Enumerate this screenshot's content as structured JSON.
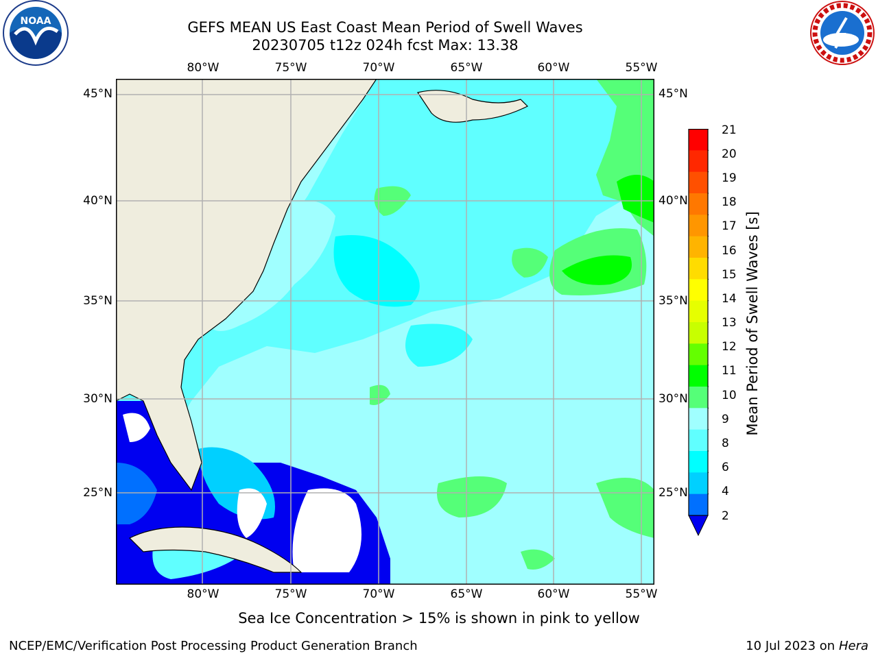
{
  "title": {
    "line1": "GEFS MEAN US East Coast Mean Period of Swell Waves",
    "line2": "20230705 t12z 024h fcst   Max: 13.38"
  },
  "logos": {
    "left": "noaa-logo",
    "right": "national-weather-service-logo"
  },
  "map": {
    "lon_labels": [
      "80°W",
      "75°W",
      "70°W",
      "65°W",
      "60°W",
      "55°W"
    ],
    "lat_labels": [
      "45°N",
      "40°N",
      "35°N",
      "30°N",
      "25°N"
    ],
    "land_color": "#efedde",
    "grid_color": "#b0b0b0"
  },
  "colorbar": {
    "label": "Mean Period of Swell Waves [s]",
    "ticks": [
      "21",
      "20",
      "19",
      "18",
      "17",
      "16",
      "15",
      "14",
      "13",
      "12",
      "11",
      "10",
      "9",
      "8",
      "6",
      "4",
      "2"
    ],
    "colors": [
      "#ff0000",
      "#ff2800",
      "#ff5000",
      "#ff7800",
      "#ff9600",
      "#ffb400",
      "#ffdc00",
      "#ffff00",
      "#e6ff00",
      "#c8ff00",
      "#64ff00",
      "#00ff00",
      "#55ff78",
      "#a0ffff",
      "#60ffff",
      "#00ffff",
      "#00d0ff",
      "#0070ff",
      "#0000f0"
    ]
  },
  "note": "Sea Ice Concentration > 15% is shown in pink to yellow",
  "footer": {
    "left": "NCEP/EMC/Verification Post Processing Product Generation Branch",
    "date": "10 Jul 2023 on ",
    "machine": "Hera"
  }
}
